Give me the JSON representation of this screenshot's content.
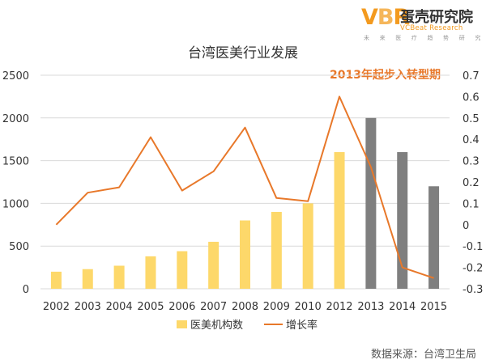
{
  "logo": {
    "mark": [
      "V",
      "B",
      "R"
    ],
    "name_cn": "蛋壳研究院",
    "name_en": "VCBeat Research",
    "tagline": "未 来 医 疗 趋 势 研 究"
  },
  "source_note": "数据来源：台湾卫生局",
  "chart_data": {
    "type": "bar+line",
    "title": "台湾医美行业发展",
    "annotation": "2013年起步入转型期",
    "categories": [
      "2002",
      "2003",
      "2004",
      "2005",
      "2006",
      "2007",
      "2008",
      "2009",
      "2010",
      "2012",
      "2013",
      "2014",
      "2015"
    ],
    "series": [
      {
        "name": "医美机构数",
        "type": "bar",
        "axis": "left",
        "values": [
          200,
          230,
          270,
          380,
          440,
          550,
          800,
          900,
          1000,
          1600,
          2000,
          1600,
          1200
        ],
        "highlight_from": "2013"
      },
      {
        "name": "增长率",
        "type": "line",
        "axis": "right",
        "values": [
          0.0,
          0.15,
          0.175,
          0.41,
          0.16,
          0.25,
          0.455,
          0.125,
          0.11,
          0.6,
          0.27,
          -0.2,
          -0.25
        ]
      }
    ],
    "y_left": {
      "min": 0,
      "max": 2500,
      "ticks": [
        0,
        500,
        1000,
        1500,
        2000,
        2500
      ]
    },
    "y_right": {
      "min": -0.3,
      "max": 0.7,
      "ticks": [
        -0.3,
        -0.2,
        -0.1,
        0,
        0.1,
        0.2,
        0.3,
        0.4,
        0.5,
        0.6,
        0.7
      ]
    },
    "grid": true,
    "legend_position": "bottom",
    "colors": {
      "bar": "#fdd86a",
      "bar_highlight": "#7f7f7f",
      "line": "#e8782a",
      "annotation": "#e8782a",
      "grid": "#d9d9d9",
      "axis_text": "#333333",
      "title": "#333333"
    }
  }
}
